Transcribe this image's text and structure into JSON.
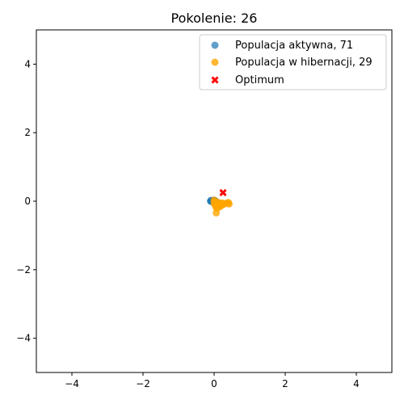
{
  "chart_data": {
    "type": "scatter",
    "title": "Pokolenie: 26",
    "xlabel": "",
    "ylabel": "",
    "xlim": [
      -5,
      5
    ],
    "ylim": [
      -5,
      5
    ],
    "xticks": [
      -4,
      -2,
      0,
      2,
      4
    ],
    "yticks": [
      -4,
      -2,
      0,
      2,
      4
    ],
    "grid": false,
    "legend_position": "top-right",
    "series": [
      {
        "name": "Populacja aktywna, 71",
        "color": "#1f77b4",
        "marker": "circle",
        "points": [
          [
            -0.1,
            0.0
          ],
          [
            -0.08,
            0.01
          ],
          [
            -0.06,
            0.0
          ],
          [
            -0.05,
            -0.01
          ],
          [
            -0.04,
            0.02
          ],
          [
            -0.03,
            0.0
          ],
          [
            -0.02,
            -0.02
          ],
          [
            -0.01,
            0.01
          ],
          [
            0.0,
            0.0
          ],
          [
            0.01,
            -0.01
          ],
          [
            0.02,
            0.02
          ],
          [
            0.03,
            -0.03
          ],
          [
            0.04,
            0.0
          ],
          [
            0.05,
            -0.05
          ],
          [
            0.06,
            -0.02
          ],
          [
            0.07,
            -0.04
          ],
          [
            0.08,
            -0.06
          ],
          [
            -0.07,
            -0.01
          ],
          [
            -0.09,
            0.02
          ],
          [
            0.0,
            0.03
          ]
        ]
      },
      {
        "name": "Populacja w hibernacji, 29",
        "color": "#ffa500",
        "marker": "circle",
        "points": [
          [
            0.0,
            0.03
          ],
          [
            0.02,
            -0.02
          ],
          [
            0.05,
            -0.05
          ],
          [
            0.08,
            -0.1
          ],
          [
            0.04,
            -0.15
          ],
          [
            0.07,
            -0.2
          ],
          [
            0.06,
            -0.34
          ],
          [
            0.15,
            -0.12
          ],
          [
            0.2,
            -0.08
          ],
          [
            0.25,
            -0.1
          ],
          [
            0.3,
            -0.07
          ],
          [
            0.38,
            -0.05
          ],
          [
            0.42,
            -0.08
          ],
          [
            0.1,
            -0.03
          ],
          [
            0.12,
            -0.18
          ],
          [
            0.18,
            -0.15
          ],
          [
            0.0,
            -0.06
          ],
          [
            0.03,
            -0.08
          ],
          [
            0.22,
            -0.05
          ],
          [
            0.4,
            -0.04
          ]
        ]
      },
      {
        "name": "Optimum",
        "color": "#ff0000",
        "marker": "x",
        "points": [
          [
            0.25,
            0.25
          ]
        ]
      }
    ]
  }
}
